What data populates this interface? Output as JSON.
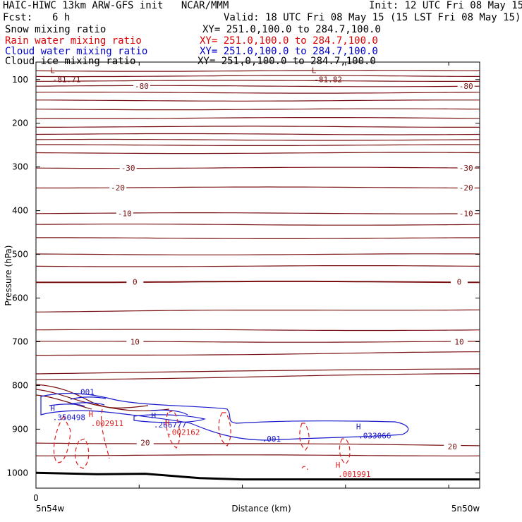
{
  "header": {
    "title": "HAIC-HIWC 13km ARW-GFS init   NCAR/MMM",
    "init": "Init: 12 UTC Fri 08 May 15",
    "fcst_label": "Fcst:",
    "fcst_value": "6 h",
    "valid": "Valid: 18 UTC Fri 08 May 15 (15 LST Fri 08 May 15)"
  },
  "legend": [
    {
      "field": "Snow mixing ratio",
      "xy": "XY= 251.0,100.0 to 284.7,100.0",
      "color": "#000000"
    },
    {
      "field": "Rain water mixing ratio",
      "xy": "XY= 251.0,100.0 to 284.7,100.0",
      "color": "#dd0000"
    },
    {
      "field": "Cloud water mixing ratio",
      "xy": "XY= 251.0,100.0 to 284.7,100.0",
      "color": "#0000cc"
    },
    {
      "field": "Cloud ice mixing ratio",
      "xy": "XY= 251.0,100.0 to 284.7,100.0",
      "color": "#000000"
    }
  ],
  "chart_data": {
    "type": "line",
    "ylabel": "Pressure (hPa)",
    "xlabel": "Distance (km)",
    "y_ticks": [
      100,
      200,
      300,
      400,
      500,
      600,
      700,
      800,
      900,
      1000
    ],
    "y_range": [
      60,
      1035
    ],
    "y_reversed": true,
    "x_range": [
      0,
      6.5
    ],
    "x_tick_label": "0",
    "x_left_label": "5n54w",
    "x_right_label": "5n50w",
    "contour_colors": {
      "temperature": "#7a1010",
      "cloud_water": "#1a1acc",
      "rain_water": "#dd2222",
      "terrain": "#000000"
    },
    "temperature_levels": [
      {
        "p": [
          80,
          80
        ],
        "label": ""
      },
      {
        "p": [
          92,
          92
        ],
        "label": ""
      },
      {
        "p": [
          103,
          103
        ],
        "label": ""
      },
      {
        "p": [
          115,
          115
        ],
        "label": "-80"
      },
      {
        "p": [
          130,
          130
        ],
        "label": ""
      },
      {
        "p": [
          148,
          148
        ],
        "label": ""
      },
      {
        "p": [
          168,
          168
        ],
        "label": ""
      },
      {
        "p": [
          188,
          188
        ],
        "label": ""
      },
      {
        "p": [
          208,
          208
        ],
        "label": ""
      },
      {
        "p": [
          225,
          225
        ],
        "label": ""
      },
      {
        "p": [
          238,
          238
        ],
        "label": ""
      },
      {
        "p": [
          250,
          250
        ],
        "label": ""
      },
      {
        "p": [
          268,
          268
        ],
        "label": ""
      },
      {
        "p": [
          302,
          302
        ],
        "label": "-30"
      },
      {
        "p": [
          347,
          347
        ],
        "label": "-20"
      },
      {
        "p": [
          406,
          406
        ],
        "label": "-10"
      },
      {
        "p": [
          432,
          432
        ],
        "label": ""
      },
      {
        "p": [
          463,
          463
        ],
        "label": ""
      },
      {
        "p": [
          500,
          500
        ],
        "label": ""
      },
      {
        "p": [
          527,
          527
        ],
        "label": ""
      },
      {
        "p": [
          563,
          563
        ],
        "label": "0"
      },
      {
        "p": [
          631,
          626
        ],
        "label": ""
      },
      {
        "p": [
          673,
          673
        ],
        "label": ""
      },
      {
        "p": [
          700,
          700
        ],
        "label": "10"
      },
      {
        "p": [
          732,
          724
        ],
        "label": ""
      },
      {
        "p": [
          787,
          773
        ],
        "label": ""
      },
      {
        "p": [
          931,
          937
        ],
        "label": "20"
      },
      {
        "p": [
          960,
          960
        ],
        "label": ""
      }
    ],
    "temperature_labels": [
      {
        "text": "-80",
        "x": 1.55,
        "p": 115
      },
      {
        "text": "-80",
        "x": 6.3,
        "p": 115
      },
      {
        "text": "-30",
        "x": 1.35,
        "p": 302
      },
      {
        "text": "-30",
        "x": 6.3,
        "p": 302
      },
      {
        "text": "-20",
        "x": 1.2,
        "p": 347
      },
      {
        "text": "-20",
        "x": 6.3,
        "p": 347
      },
      {
        "text": "-10",
        "x": 1.3,
        "p": 406
      },
      {
        "text": "-10",
        "x": 6.3,
        "p": 406
      },
      {
        "text": "0",
        "x": 1.45,
        "p": 563
      },
      {
        "text": "0",
        "x": 6.2,
        "p": 563
      },
      {
        "text": "10",
        "x": 1.45,
        "p": 700
      },
      {
        "text": "10",
        "x": 6.2,
        "p": 700
      },
      {
        "text": "20",
        "x": 1.6,
        "p": 931
      },
      {
        "text": "20",
        "x": 6.1,
        "p": 940
      }
    ],
    "extrema": [
      {
        "type": "L",
        "value": "81.71",
        "x": 0.12,
        "p": 85,
        "color": "#7a1010"
      },
      {
        "type": "L",
        "value": "81.82",
        "x": 3.95,
        "p": 85,
        "color": "#7a1010"
      },
      {
        "type": "H",
        "value": ".350498",
        "x": 0.12,
        "p": 858,
        "color": "#1a1acc"
      },
      {
        "type": "H",
        "value": ".266777",
        "x": 1.6,
        "p": 875,
        "color": "#1a1acc"
      },
      {
        "type": "H",
        "value": ".033066",
        "x": 4.6,
        "p": 900,
        "color": "#1a1acc"
      },
      {
        "type": "H",
        "value": ".002911",
        "x": 0.68,
        "p": 872,
        "color": "#dd2222"
      },
      {
        "type": "H",
        "value": ".002162",
        "x": 1.8,
        "p": 892,
        "color": "#dd2222"
      },
      {
        "type": "H",
        "value": ".001991",
        "x": 4.3,
        "p": 988,
        "color": "#dd2222"
      }
    ],
    "cloud_water_labels": [
      {
        "text": ".001",
        "x": 0.72,
        "p": 815
      },
      {
        "text": ".001",
        "x": 3.45,
        "p": 922
      }
    ],
    "terrain_p": [
      [
        0,
        1000
      ],
      [
        0.9,
        1003
      ],
      [
        1.6,
        1002
      ],
      [
        2.4,
        1012
      ],
      [
        3.0,
        1015
      ],
      [
        4.0,
        1015
      ],
      [
        6.5,
        1015
      ]
    ]
  }
}
